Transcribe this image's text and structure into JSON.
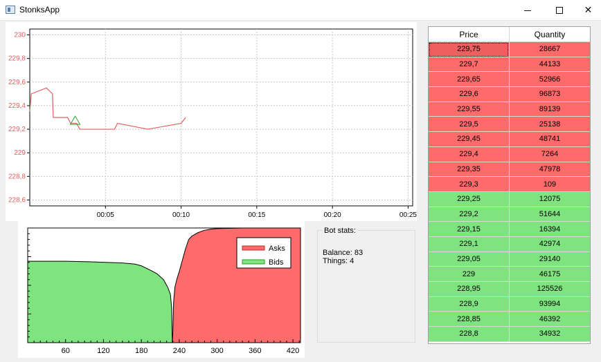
{
  "window": {
    "title": "StonksApp",
    "minimize_label": "",
    "maximize_label": "",
    "close_label": "✕"
  },
  "colors": {
    "ask": "#ff6b6b",
    "bid": "#7fe37f",
    "price_line": "#e06060",
    "trade_marker": "#2ca02c",
    "axis_label_price": "#e06060"
  },
  "chart_data": [
    {
      "type": "line",
      "title": "",
      "xlabel": "",
      "ylabel": "",
      "x_unit": "minutes",
      "x_tick_labels": [
        "00:05",
        "00:10",
        "00:15",
        "00:20",
        "00:25"
      ],
      "x_ticks": [
        5,
        10,
        15,
        20,
        25
      ],
      "xlim": [
        0,
        25.3
      ],
      "y_tick_labels": [
        "228,6",
        "228,8",
        "229",
        "229,2",
        "229,4",
        "229,6",
        "229,8",
        "230"
      ],
      "y_ticks": [
        228.6,
        228.8,
        229.0,
        229.2,
        229.4,
        229.6,
        229.8,
        230.0
      ],
      "ylim": [
        228.55,
        230.05
      ],
      "grid": true,
      "series": [
        {
          "x": [
            0,
            0.1,
            1.1,
            1.5,
            1.55,
            2.5,
            2.7,
            3.1,
            3.3,
            5.6,
            5.8,
            7.8,
            10.0,
            10.3
          ],
          "y": [
            229.35,
            229.5,
            229.55,
            229.5,
            229.3,
            229.3,
            229.25,
            229.25,
            229.2,
            229.2,
            229.25,
            229.2,
            229.25,
            229.3
          ]
        }
      ],
      "markers": [
        {
          "shape": "triangle",
          "x": 3.0,
          "y": 229.27
        }
      ]
    },
    {
      "type": "area",
      "title": "",
      "xlabel": "",
      "ylabel": "",
      "x_tick_labels": [
        "60",
        "120",
        "180",
        "240",
        "300",
        "360",
        "420"
      ],
      "x_ticks": [
        60,
        120,
        180,
        240,
        300,
        360,
        420
      ],
      "xlim": [
        0,
        432
      ],
      "ylim": [
        0,
        100
      ],
      "grid": false,
      "legend": "top-right",
      "series": [
        {
          "name": "Asks",
          "x": [
            229,
            230,
            231,
            233,
            236,
            240,
            245,
            250,
            255,
            260,
            270,
            280,
            290,
            300,
            340,
            350,
            432
          ],
          "y": [
            0,
            10,
            35,
            48,
            55,
            62,
            72,
            82,
            90,
            93,
            96,
            98,
            99,
            99.5,
            100,
            105,
            105
          ]
        },
        {
          "name": "Bids",
          "x": [
            0,
            60,
            100,
            150,
            170,
            180,
            195,
            205,
            215,
            222,
            226,
            228,
            229
          ],
          "y": [
            71,
            71,
            70.5,
            69.5,
            68.5,
            67,
            63,
            60,
            55,
            48,
            42,
            30,
            0
          ]
        }
      ]
    }
  ],
  "bot_stats": {
    "title": "Bot stats:",
    "balance_label": "Balance:",
    "balance_value": "83",
    "things_label": "Things:",
    "things_value": "4"
  },
  "order_book": {
    "headers": {
      "price": "Price",
      "quantity": "Quantity"
    },
    "asks": [
      {
        "price": "229,75",
        "quantity": "28667"
      },
      {
        "price": "229,7",
        "quantity": "44133"
      },
      {
        "price": "229,65",
        "quantity": "52966"
      },
      {
        "price": "229,6",
        "quantity": "96873"
      },
      {
        "price": "229,55",
        "quantity": "89139"
      },
      {
        "price": "229,5",
        "quantity": "25138"
      },
      {
        "price": "229,45",
        "quantity": "48741"
      },
      {
        "price": "229,4",
        "quantity": "7264"
      },
      {
        "price": "229,35",
        "quantity": "47978"
      },
      {
        "price": "229,3",
        "quantity": "109"
      }
    ],
    "bids": [
      {
        "price": "229,25",
        "quantity": "12075"
      },
      {
        "price": "229,2",
        "quantity": "51644"
      },
      {
        "price": "229,15",
        "quantity": "16394"
      },
      {
        "price": "229,1",
        "quantity": "42974"
      },
      {
        "price": "229,05",
        "quantity": "29140"
      },
      {
        "price": "229",
        "quantity": "46175"
      },
      {
        "price": "228,95",
        "quantity": "125526"
      },
      {
        "price": "228,9",
        "quantity": "93994"
      },
      {
        "price": "228,85",
        "quantity": "46392"
      },
      {
        "price": "228,8",
        "quantity": "34932"
      }
    ]
  }
}
